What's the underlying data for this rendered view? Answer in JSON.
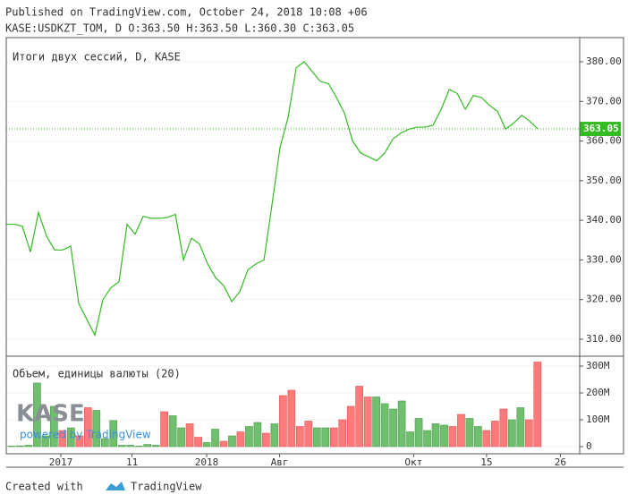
{
  "header": {
    "line1": "Published on TradingView.com, October 24, 2018 10:08 +06",
    "line2": "KASE:USDKZT_TOM, D O:363.50 H:363.50 L:360.30 C:363.05"
  },
  "watermark": {
    "logo": "KASE",
    "powered": "powered by TradingView"
  },
  "footer": {
    "created": "Created with",
    "brand": "TradingView"
  },
  "chart_data": [
    {
      "type": "line",
      "title": "Итоги двух сессий, D, KASE",
      "color": "#33bb22",
      "values": [
        339,
        339,
        338.5,
        332,
        342,
        336,
        332.5,
        332.5,
        333.5,
        319,
        315,
        311,
        320,
        323,
        324.5,
        339,
        336.5,
        341,
        340.5,
        340.5,
        340.7,
        341.5,
        330,
        335.5,
        334,
        329,
        325.5,
        323.5,
        319.5,
        322,
        327.5,
        329,
        330,
        344,
        358.5,
        366,
        378.5,
        380,
        377.5,
        375,
        374.5,
        371,
        367,
        360,
        357,
        356,
        355,
        357,
        360.5,
        362,
        363,
        363.5,
        363.5,
        364,
        368,
        373,
        372,
        368,
        371.5,
        371,
        369,
        367.5,
        363,
        364.5,
        366.5,
        365,
        363.05
      ],
      "xlim": [
        0,
        71.2
      ],
      "ylim": [
        305.7,
        386.1
      ],
      "yticks": [
        {
          "value": 310,
          "label": "310.00"
        },
        {
          "value": 320,
          "label": "320.00"
        },
        {
          "value": 330,
          "label": "330.00"
        },
        {
          "value": 340,
          "label": "340.00"
        },
        {
          "value": 350,
          "label": "350.00"
        },
        {
          "value": 360,
          "label": "360.00"
        },
        {
          "value": 370,
          "label": "370.00"
        },
        {
          "value": 380,
          "label": "380.00"
        }
      ],
      "grid": true
    },
    {
      "type": "bar",
      "title": "Объем, единицы валюты (20)",
      "values": [
        2,
        3,
        5,
        237,
        40,
        150,
        60,
        70,
        40,
        145,
        135,
        30,
        97,
        5,
        5,
        2,
        8,
        5,
        130,
        115,
        70,
        85,
        35,
        15,
        65,
        20,
        40,
        55,
        75,
        90,
        50,
        85,
        190,
        210,
        75,
        95,
        70,
        70,
        70,
        100,
        150,
        225,
        185,
        185,
        160,
        140,
        170,
        55,
        105,
        60,
        85,
        80,
        75,
        120,
        105,
        75,
        60,
        95,
        140,
        100,
        145,
        100,
        315
      ],
      "bar_colors": [
        "#6fbf6f",
        "#6fbf6f",
        "#6fbf6f",
        "#6fbf6f",
        "#6fbf6f",
        "#6fbf6f",
        "#ff7b7b",
        "#6fbf6f",
        "#ff7b7b",
        "#ff7b7b",
        "#6fbf6f",
        "#6fbf6f",
        "#6fbf6f",
        "#6fbf6f",
        "#6fbf6f",
        "#6fbf6f",
        "#6fbf6f",
        "#6fbf6f",
        "#ff7b7b",
        "#6fbf6f",
        "#6fbf6f",
        "#ff7b7b",
        "#ff7b7b",
        "#6fbf6f",
        "#6fbf6f",
        "#ff7b7b",
        "#6fbf6f",
        "#ff7b7b",
        "#6fbf6f",
        "#6fbf6f",
        "#ff7b7b",
        "#6fbf6f",
        "#ff7b7b",
        "#ff7b7b",
        "#ff7b7b",
        "#ff7b7b",
        "#6fbf6f",
        "#6fbf6f",
        "#ff7b7b",
        "#ff7b7b",
        "#ff7b7b",
        "#ff7b7b",
        "#ff7b7b",
        "#6fbf6f",
        "#6fbf6f",
        "#6fbf6f",
        "#6fbf6f",
        "#6fbf6f",
        "#6fbf6f",
        "#6fbf6f",
        "#6fbf6f",
        "#6fbf6f",
        "#ff7b7b",
        "#ff7b7b",
        "#6fbf6f",
        "#6fbf6f",
        "#ff7b7b",
        "#ff7b7b",
        "#ff7b7b",
        "#6fbf6f",
        "#6fbf6f",
        "#ff7b7b",
        "#ff7b7b"
      ],
      "xlim": [
        -0.63,
        66.98
      ],
      "xticks": [
        {
          "value": 5.8,
          "label": "2017"
        },
        {
          "value": 14.2,
          "label": "11"
        },
        {
          "value": 23,
          "label": "2018"
        },
        {
          "value": 31.6,
          "label": "Авг"
        },
        {
          "value": 47.4,
          "label": "Окт"
        },
        {
          "value": 56,
          "label": "15"
        },
        {
          "value": 64.7,
          "label": "26"
        }
      ],
      "ylim": [
        -26.7,
        336.7
      ],
      "yticks": [
        0,
        {
          "value": 100,
          "label": "100M"
        },
        {
          "value": 200,
          "label": "200M"
        },
        {
          "value": 300,
          "label": "300M"
        }
      ],
      "grid": true
    }
  ]
}
